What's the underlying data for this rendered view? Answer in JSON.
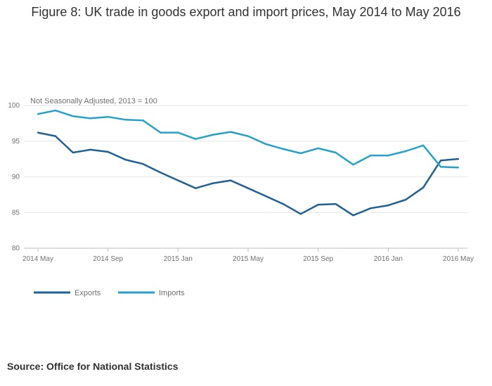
{
  "title": "Figure 8: UK trade in goods export and import prices, May 2014 to May 2016",
  "source": "Source: Office for National Statistics",
  "colors": {
    "exports": "#206095",
    "imports": "#27a0cc",
    "grid": "#e6e6e6",
    "axis": "#bebebe"
  },
  "chart_data": {
    "type": "line",
    "note": "Not Seasonally Adjusted, 2013 = 100",
    "x": [
      "2014 May",
      "2014 Jun",
      "2014 Jul",
      "2014 Aug",
      "2014 Sep",
      "2014 Oct",
      "2014 Nov",
      "2014 Dec",
      "2015 Jan",
      "2015 Feb",
      "2015 Mar",
      "2015 Apr",
      "2015 May",
      "2015 Jun",
      "2015 Jul",
      "2015 Aug",
      "2015 Sep",
      "2015 Oct",
      "2015 Nov",
      "2015 Dec",
      "2016 Jan",
      "2016 Feb",
      "2016 Mar",
      "2016 Apr",
      "2016 May"
    ],
    "x_tick_labels": [
      "2014 May",
      "2014 Sep",
      "2015 Jan",
      "2015 May",
      "2015 Sep",
      "2016 Jan",
      "2016 May"
    ],
    "y_ticks": [
      80,
      85,
      90,
      95,
      100
    ],
    "ylim": [
      80,
      100
    ],
    "grid": true,
    "legend_position": "bottom-left",
    "series": [
      {
        "name": "Exports",
        "color": "#206095",
        "values": [
          96.2,
          95.7,
          93.4,
          93.8,
          93.5,
          92.4,
          91.8,
          90.6,
          89.5,
          88.4,
          89.1,
          89.5,
          88.4,
          87.3,
          86.2,
          84.8,
          86.1,
          86.2,
          84.6,
          85.6,
          86.0,
          86.8,
          88.5,
          92.3,
          92.5
        ]
      },
      {
        "name": "Imports",
        "color": "#27a0cc",
        "values": [
          98.8,
          99.3,
          98.5,
          98.2,
          98.4,
          98.0,
          97.9,
          96.2,
          96.2,
          95.3,
          95.9,
          96.3,
          95.7,
          94.6,
          93.9,
          93.3,
          94.0,
          93.4,
          91.7,
          93.0,
          93.0,
          93.6,
          94.4,
          91.4,
          91.3
        ]
      }
    ]
  }
}
